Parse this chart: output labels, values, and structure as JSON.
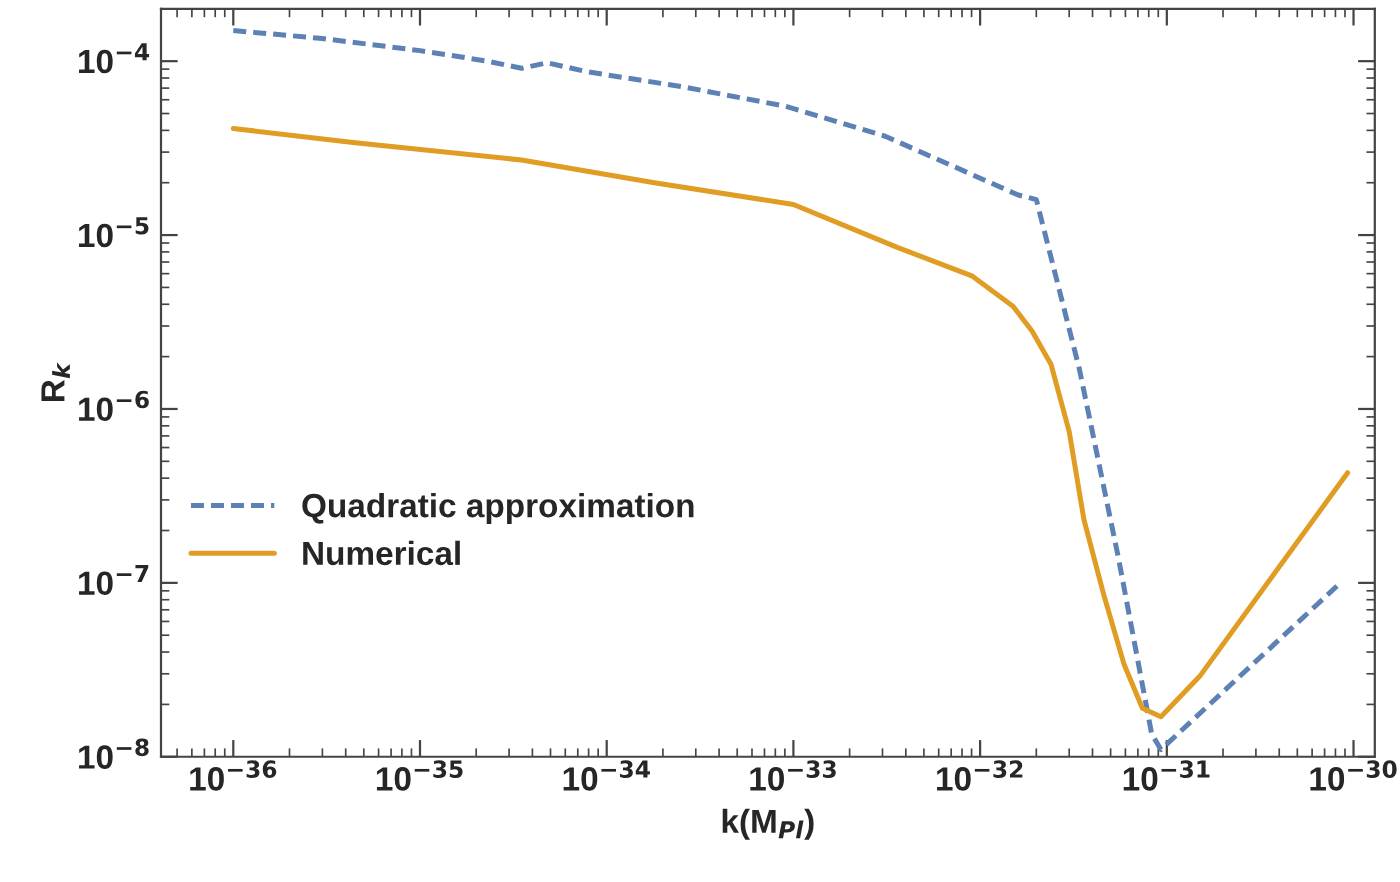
{
  "chart_data": {
    "type": "line",
    "xlabel": "k(M$_{Pl}$)",
    "ylabel": "R$_{k}$",
    "log": "xy",
    "legend": "left",
    "grid": false,
    "xlim": [
      4.1e-37,
      1.3e-30
    ],
    "ylim": [
      1e-08,
      0.0002
    ],
    "xticks": [
      {
        "value": 1e-36,
        "label": "10$^{−36}$"
      },
      {
        "value": 1e-35,
        "label": "10$^{−35}$"
      },
      {
        "value": 1e-34,
        "label": "10$^{−34}$"
      },
      {
        "value": 1e-33,
        "label": "10$^{−33}$"
      },
      {
        "value": 1e-32,
        "label": "10$^{−32}$"
      },
      {
        "value": 1e-31,
        "label": "10$^{−31}$"
      },
      {
        "value": 1e-30,
        "label": "10$^{−30}$"
      }
    ],
    "yticks": [
      {
        "value": 1e-08,
        "label": "10$^{−8}$"
      },
      {
        "value": 1e-07,
        "label": "10$^{−7}$"
      },
      {
        "value": 1e-06,
        "label": "10$^{−6}$"
      },
      {
        "value": 1e-05,
        "label": "10$^{−5}$"
      },
      {
        "value": 0.0001,
        "label": "10$^{−4}$"
      }
    ],
    "series": [
      {
        "name": "Quadratic approximation",
        "color": "#5e81b5",
        "line_style": "dashed",
        "x": [
          1e-36,
          3e-36,
          1e-35,
          2.3e-35,
          3.5e-35,
          4.8e-35,
          7.8e-35,
          2.6e-34,
          9.1e-34,
          3.1e-33,
          7.1e-33,
          1.6e-32,
          2e-32,
          3.4e-32,
          5.5e-32,
          8.3e-32,
          9.3e-32,
          8.5e-31
        ],
        "values": [
          0.00015,
          0.000135,
          0.000115,
          0.0001,
          9.1e-05,
          9.8e-05,
          8.7e-05,
          7.1e-05,
          5.5e-05,
          3.7e-05,
          2.5e-05,
          1.7e-05,
          1.6e-05,
          1.7e-06,
          1.4e-07,
          1.35e-08,
          1.1e-08,
          1e-07
        ]
      },
      {
        "name": "Numerical",
        "color": "#e19c24",
        "line_style": "solid",
        "x": [
          1e-36,
          4.5e-36,
          3.5e-35,
          1.8e-34,
          1e-33,
          3.6e-33,
          9.1e-33,
          1.5e-32,
          1.9e-32,
          2.4e-32,
          3e-32,
          3.6e-32,
          4.6e-32,
          5.9e-32,
          7.4e-32,
          9.3e-32,
          1.5e-31,
          9.3e-31
        ],
        "values": [
          4.1e-05,
          3.4e-05,
          2.7e-05,
          2e-05,
          1.5e-05,
          8.5e-06,
          5.8e-06,
          3.9e-06,
          2.8e-06,
          1.8e-06,
          7.4e-07,
          2.3e-07,
          8.5e-08,
          3.4e-08,
          1.9e-08,
          1.7e-08,
          2.9e-08,
          4.3e-07
        ]
      }
    ]
  }
}
